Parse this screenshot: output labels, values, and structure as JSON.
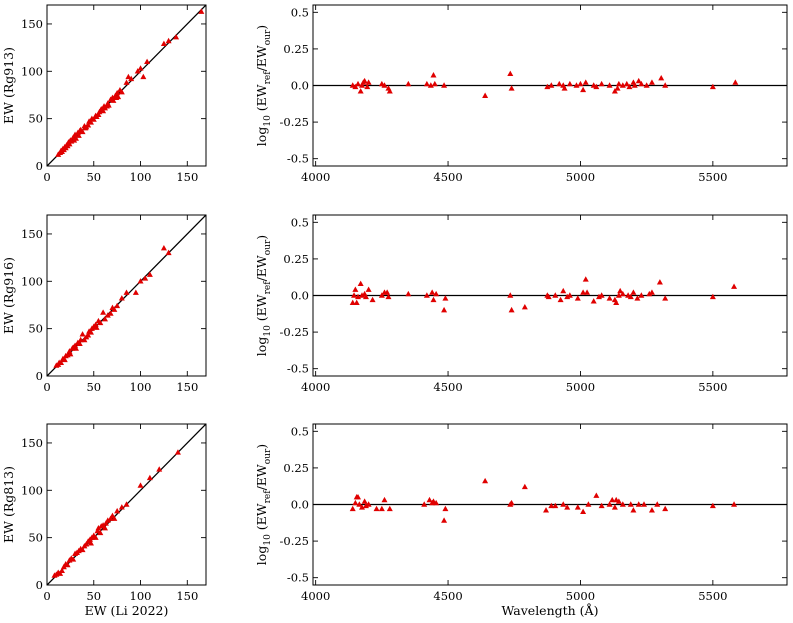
{
  "chart_data": [
    {
      "type": "scatter",
      "panel": "top-left",
      "ylabel": "EW (Rg913)",
      "xlabel": "",
      "xlim": [
        0,
        170
      ],
      "ylim": [
        0,
        170
      ],
      "xticks": [
        "0",
        "50",
        "100",
        "150"
      ],
      "yticks": [
        "0",
        "50",
        "100",
        "150"
      ],
      "reference_line": "y = x",
      "marker": "triangle",
      "color": "#e00000",
      "points": [
        [
          12,
          12
        ],
        [
          14,
          14
        ],
        [
          15,
          16
        ],
        [
          16,
          15
        ],
        [
          17,
          18
        ],
        [
          18,
          17
        ],
        [
          19,
          20
        ],
        [
          20,
          19
        ],
        [
          21,
          22
        ],
        [
          22,
          21
        ],
        [
          23,
          25
        ],
        [
          24,
          23
        ],
        [
          25,
          27
        ],
        [
          26,
          26
        ],
        [
          28,
          30
        ],
        [
          29,
          27
        ],
        [
          30,
          33
        ],
        [
          31,
          29
        ],
        [
          33,
          35
        ],
        [
          34,
          32
        ],
        [
          35,
          37
        ],
        [
          36,
          38
        ],
        [
          38,
          36
        ],
        [
          40,
          42
        ],
        [
          41,
          40
        ],
        [
          42,
          41
        ],
        [
          44,
          43
        ],
        [
          45,
          47
        ],
        [
          47,
          46
        ],
        [
          48,
          50
        ],
        [
          50,
          49
        ],
        [
          52,
          53
        ],
        [
          53,
          52
        ],
        [
          55,
          54
        ],
        [
          56,
          57
        ],
        [
          58,
          60
        ],
        [
          60,
          58
        ],
        [
          61,
          63
        ],
        [
          62,
          61
        ],
        [
          64,
          63
        ],
        [
          65,
          66
        ],
        [
          66,
          64
        ],
        [
          68,
          70
        ],
        [
          70,
          72
        ],
        [
          71,
          69
        ],
        [
          73,
          74
        ],
        [
          74,
          72
        ],
        [
          75,
          77
        ],
        [
          76,
          73
        ],
        [
          78,
          80
        ],
        [
          80,
          78
        ],
        [
          85,
          88
        ],
        [
          87,
          94
        ],
        [
          90,
          92
        ],
        [
          97,
          100
        ],
        [
          100,
          103
        ],
        [
          103,
          94
        ],
        [
          107,
          110
        ],
        [
          125,
          129
        ],
        [
          130,
          132
        ],
        [
          138,
          136
        ],
        [
          165,
          163
        ]
      ]
    },
    {
      "type": "scatter",
      "panel": "top-right",
      "ylabel": "log10 (EWref/EWour)",
      "xlabel": "",
      "xlim": [
        3990,
        5780
      ],
      "ylim": [
        -0.55,
        0.55
      ],
      "xticks": [
        "4000",
        "4500",
        "5000",
        "5500"
      ],
      "yticks": [
        "0.5",
        "0.25",
        "0.0",
        "-0.25",
        "-0.5"
      ],
      "reference_line": "y = 0",
      "marker": "triangle",
      "color": "#e00000",
      "points": [
        [
          4140,
          0.0
        ],
        [
          4150,
          -0.01
        ],
        [
          4160,
          0.01
        ],
        [
          4170,
          -0.04
        ],
        [
          4175,
          0.0
        ],
        [
          4180,
          0.02
        ],
        [
          4185,
          0.03
        ],
        [
          4195,
          -0.01
        ],
        [
          4200,
          0.02
        ],
        [
          4250,
          0.01
        ],
        [
          4260,
          0.0
        ],
        [
          4275,
          -0.02
        ],
        [
          4280,
          -0.04
        ],
        [
          4350,
          0.01
        ],
        [
          4420,
          0.01
        ],
        [
          4435,
          0.0
        ],
        [
          4445,
          0.07
        ],
        [
          4450,
          0.01
        ],
        [
          4485,
          0.0
        ],
        [
          4640,
          -0.07
        ],
        [
          4735,
          0.08
        ],
        [
          4740,
          -0.02
        ],
        [
          4875,
          -0.01
        ],
        [
          4890,
          0.0
        ],
        [
          4920,
          0.01
        ],
        [
          4935,
          0.0
        ],
        [
          4940,
          -0.02
        ],
        [
          4960,
          0.01
        ],
        [
          4985,
          0.0
        ],
        [
          5000,
          0.01
        ],
        [
          5010,
          -0.03
        ],
        [
          5020,
          0.02
        ],
        [
          5050,
          0.0
        ],
        [
          5060,
          -0.01
        ],
        [
          5080,
          0.01
        ],
        [
          5110,
          0.0
        ],
        [
          5130,
          -0.04
        ],
        [
          5140,
          -0.02
        ],
        [
          5145,
          0.01
        ],
        [
          5160,
          0.0
        ],
        [
          5175,
          0.01
        ],
        [
          5185,
          -0.01
        ],
        [
          5200,
          0.02
        ],
        [
          5205,
          0.0
        ],
        [
          5220,
          0.03
        ],
        [
          5230,
          0.01
        ],
        [
          5250,
          0.0
        ],
        [
          5270,
          0.02
        ],
        [
          5305,
          0.05
        ],
        [
          5320,
          0.0
        ],
        [
          5500,
          -0.01
        ],
        [
          5585,
          0.02
        ]
      ]
    },
    {
      "type": "scatter",
      "panel": "middle-left",
      "ylabel": "EW (Rg916)",
      "xlabel": "",
      "xlim": [
        0,
        170
      ],
      "ylim": [
        0,
        170
      ],
      "xticks": [
        "0",
        "50",
        "100",
        "150"
      ],
      "yticks": [
        "0",
        "50",
        "100",
        "150"
      ],
      "reference_line": "y = x",
      "marker": "triangle",
      "color": "#e00000",
      "points": [
        [
          10,
          11
        ],
        [
          12,
          12
        ],
        [
          13,
          14
        ],
        [
          15,
          14
        ],
        [
          17,
          18
        ],
        [
          19,
          17
        ],
        [
          20,
          21
        ],
        [
          22,
          22
        ],
        [
          24,
          26
        ],
        [
          25,
          23
        ],
        [
          27,
          29
        ],
        [
          28,
          30
        ],
        [
          30,
          32
        ],
        [
          31,
          29
        ],
        [
          33,
          35
        ],
        [
          35,
          34
        ],
        [
          36,
          38
        ],
        [
          38,
          44
        ],
        [
          40,
          38
        ],
        [
          42,
          41
        ],
        [
          44,
          43
        ],
        [
          45,
          47
        ],
        [
          47,
          46
        ],
        [
          48,
          50
        ],
        [
          50,
          52
        ],
        [
          52,
          54
        ],
        [
          53,
          51
        ],
        [
          55,
          58
        ],
        [
          57,
          56
        ],
        [
          60,
          67
        ],
        [
          62,
          60
        ],
        [
          65,
          64
        ],
        [
          68,
          66
        ],
        [
          70,
          72
        ],
        [
          72,
          70
        ],
        [
          75,
          74
        ],
        [
          80,
          82
        ],
        [
          85,
          88
        ],
        [
          95,
          88
        ],
        [
          100,
          100
        ],
        [
          105,
          103
        ],
        [
          110,
          107
        ],
        [
          125,
          135
        ],
        [
          130,
          130
        ]
      ]
    },
    {
      "type": "scatter",
      "panel": "middle-right",
      "ylabel": "log10 (EWref/EWour)",
      "xlabel": "",
      "xlim": [
        3990,
        5780
      ],
      "ylim": [
        -0.55,
        0.55
      ],
      "xticks": [
        "4000",
        "4500",
        "5000",
        "5500"
      ],
      "yticks": [
        "0.5",
        "0.25",
        "0.0",
        "-0.25",
        "-0.5"
      ],
      "reference_line": "y = 0",
      "marker": "triangle",
      "color": "#e00000",
      "points": [
        [
          4140,
          -0.05
        ],
        [
          4145,
          0.0
        ],
        [
          4150,
          0.04
        ],
        [
          4155,
          -0.05
        ],
        [
          4160,
          -0.01
        ],
        [
          4170,
          0.08
        ],
        [
          4175,
          0.0
        ],
        [
          4185,
          0.01
        ],
        [
          4190,
          -0.01
        ],
        [
          4200,
          0.04
        ],
        [
          4215,
          -0.03
        ],
        [
          4250,
          0.0
        ],
        [
          4260,
          0.02
        ],
        [
          4270,
          0.02
        ],
        [
          4275,
          -0.01
        ],
        [
          4350,
          0.01
        ],
        [
          4420,
          0.0
        ],
        [
          4440,
          0.02
        ],
        [
          4445,
          -0.03
        ],
        [
          4455,
          0.01
        ],
        [
          4485,
          -0.1
        ],
        [
          4490,
          -0.02
        ],
        [
          4735,
          0.0
        ],
        [
          4740,
          -0.1
        ],
        [
          4790,
          -0.08
        ],
        [
          4875,
          0.0
        ],
        [
          4880,
          -0.01
        ],
        [
          4905,
          0.0
        ],
        [
          4925,
          -0.03
        ],
        [
          4935,
          0.03
        ],
        [
          4950,
          -0.01
        ],
        [
          4960,
          0.0
        ],
        [
          4990,
          -0.02
        ],
        [
          5010,
          0.02
        ],
        [
          5020,
          0.11
        ],
        [
          5025,
          0.02
        ],
        [
          5050,
          -0.04
        ],
        [
          5070,
          -0.01
        ],
        [
          5080,
          0.0
        ],
        [
          5110,
          -0.02
        ],
        [
          5130,
          -0.03
        ],
        [
          5135,
          -0.05
        ],
        [
          5145,
          0.0
        ],
        [
          5150,
          0.03
        ],
        [
          5160,
          0.01
        ],
        [
          5180,
          0.0
        ],
        [
          5190,
          -0.01
        ],
        [
          5200,
          0.02
        ],
        [
          5215,
          -0.02
        ],
        [
          5230,
          0.0
        ],
        [
          5260,
          0.01
        ],
        [
          5270,
          0.02
        ],
        [
          5300,
          0.09
        ],
        [
          5320,
          -0.02
        ],
        [
          5500,
          -0.01
        ],
        [
          5580,
          0.06
        ]
      ]
    },
    {
      "type": "scatter",
      "panel": "bottom-left",
      "ylabel": "EW (Rg813)",
      "xlabel": "EW (Li 2022)",
      "xlim": [
        0,
        170
      ],
      "ylim": [
        0,
        170
      ],
      "xticks": [
        "0",
        "50",
        "100",
        "150"
      ],
      "yticks": [
        "0",
        "50",
        "100",
        "150"
      ],
      "reference_line": "y = x",
      "marker": "triangle",
      "color": "#e00000",
      "points": [
        [
          8,
          10
        ],
        [
          10,
          11
        ],
        [
          12,
          13
        ],
        [
          14,
          12
        ],
        [
          16,
          15
        ],
        [
          18,
          19
        ],
        [
          20,
          22
        ],
        [
          22,
          21
        ],
        [
          24,
          26
        ],
        [
          26,
          28
        ],
        [
          28,
          27
        ],
        [
          30,
          33
        ],
        [
          32,
          34
        ],
        [
          34,
          36
        ],
        [
          36,
          38
        ],
        [
          38,
          37
        ],
        [
          40,
          41
        ],
        [
          42,
          43
        ],
        [
          44,
          46
        ],
        [
          46,
          48
        ],
        [
          47,
          44
        ],
        [
          48,
          50
        ],
        [
          50,
          52
        ],
        [
          52,
          50
        ],
        [
          54,
          57
        ],
        [
          55,
          60
        ],
        [
          57,
          55
        ],
        [
          58,
          62
        ],
        [
          60,
          63
        ],
        [
          62,
          60
        ],
        [
          63,
          65
        ],
        [
          65,
          68
        ],
        [
          68,
          70
        ],
        [
          70,
          73
        ],
        [
          72,
          70
        ],
        [
          75,
          78
        ],
        [
          80,
          82
        ],
        [
          85,
          85
        ],
        [
          100,
          105
        ],
        [
          110,
          113
        ],
        [
          120,
          122
        ],
        [
          140,
          140
        ]
      ]
    },
    {
      "type": "scatter",
      "panel": "bottom-right",
      "ylabel": "log10 (EWref/EWour)",
      "xlabel": "Wavelength (Å)",
      "xlim": [
        3990,
        5780
      ],
      "ylim": [
        -0.55,
        0.55
      ],
      "xticks": [
        "4000",
        "4500",
        "5000",
        "5500"
      ],
      "yticks": [
        "0.5",
        "0.25",
        "0.0",
        "-0.25",
        "-0.5"
      ],
      "reference_line": "y = 0",
      "marker": "triangle",
      "color": "#e00000",
      "points": [
        [
          4140,
          -0.03
        ],
        [
          4150,
          0.01
        ],
        [
          4155,
          0.05
        ],
        [
          4160,
          0.05
        ],
        [
          4165,
          0.0
        ],
        [
          4175,
          -0.02
        ],
        [
          4185,
          0.02
        ],
        [
          4190,
          -0.01
        ],
        [
          4200,
          0.0
        ],
        [
          4230,
          -0.03
        ],
        [
          4250,
          -0.03
        ],
        [
          4260,
          0.03
        ],
        [
          4280,
          -0.03
        ],
        [
          4410,
          0.0
        ],
        [
          4430,
          0.03
        ],
        [
          4440,
          0.01
        ],
        [
          4445,
          0.02
        ],
        [
          4455,
          0.01
        ],
        [
          4485,
          -0.11
        ],
        [
          4490,
          -0.03
        ],
        [
          4640,
          0.16
        ],
        [
          4735,
          0.0
        ],
        [
          4740,
          0.01
        ],
        [
          4790,
          0.12
        ],
        [
          4870,
          -0.04
        ],
        [
          4890,
          -0.01
        ],
        [
          4905,
          -0.01
        ],
        [
          4935,
          0.0
        ],
        [
          4950,
          -0.02
        ],
        [
          4990,
          -0.02
        ],
        [
          5010,
          -0.05
        ],
        [
          5030,
          0.0
        ],
        [
          5060,
          0.06
        ],
        [
          5080,
          -0.01
        ],
        [
          5110,
          0.0
        ],
        [
          5120,
          0.03
        ],
        [
          5130,
          -0.02
        ],
        [
          5135,
          0.03
        ],
        [
          5145,
          0.02
        ],
        [
          5160,
          0.0
        ],
        [
          5190,
          0.0
        ],
        [
          5200,
          -0.04
        ],
        [
          5220,
          0.0
        ],
        [
          5240,
          0.0
        ],
        [
          5270,
          -0.04
        ],
        [
          5290,
          0.0
        ],
        [
          5320,
          -0.03
        ],
        [
          5500,
          -0.01
        ],
        [
          5580,
          0.0
        ]
      ]
    }
  ]
}
